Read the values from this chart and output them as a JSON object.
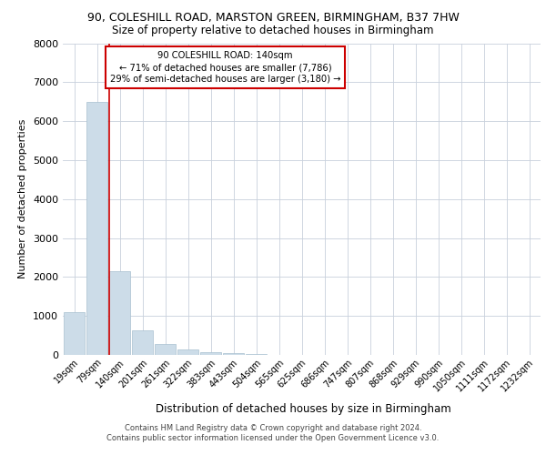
{
  "title_line1": "90, COLESHILL ROAD, MARSTON GREEN, BIRMINGHAM, B37 7HW",
  "title_line2": "Size of property relative to detached houses in Birmingham",
  "xlabel": "Distribution of detached houses by size in Birmingham",
  "ylabel": "Number of detached properties",
  "categories": [
    "19sqm",
    "79sqm",
    "140sqm",
    "201sqm",
    "261sqm",
    "322sqm",
    "383sqm",
    "443sqm",
    "504sqm",
    "565sqm",
    "625sqm",
    "686sqm",
    "747sqm",
    "807sqm",
    "868sqm",
    "929sqm",
    "990sqm",
    "1050sqm",
    "1111sqm",
    "1172sqm",
    "1232sqm"
  ],
  "values": [
    1100,
    6500,
    2150,
    620,
    280,
    130,
    80,
    55,
    30,
    0,
    0,
    0,
    0,
    0,
    0,
    0,
    0,
    0,
    0,
    0,
    0
  ],
  "bar_color": "#ccdce8",
  "bar_edge_color": "#a8c0d0",
  "vline_color": "#cc0000",
  "annotation_text": "90 COLESHILL ROAD: 140sqm\n← 71% of detached houses are smaller (7,786)\n29% of semi-detached houses are larger (3,180) →",
  "annotation_box_color": "#ffffff",
  "annotation_box_edge": "#cc0000",
  "ylim": [
    0,
    8000
  ],
  "yticks": [
    0,
    1000,
    2000,
    3000,
    4000,
    5000,
    6000,
    7000,
    8000
  ],
  "footer_line1": "Contains HM Land Registry data © Crown copyright and database right 2024.",
  "footer_line2": "Contains public sector information licensed under the Open Government Licence v3.0.",
  "bg_color": "#ffffff",
  "grid_color": "#c8d0dc"
}
